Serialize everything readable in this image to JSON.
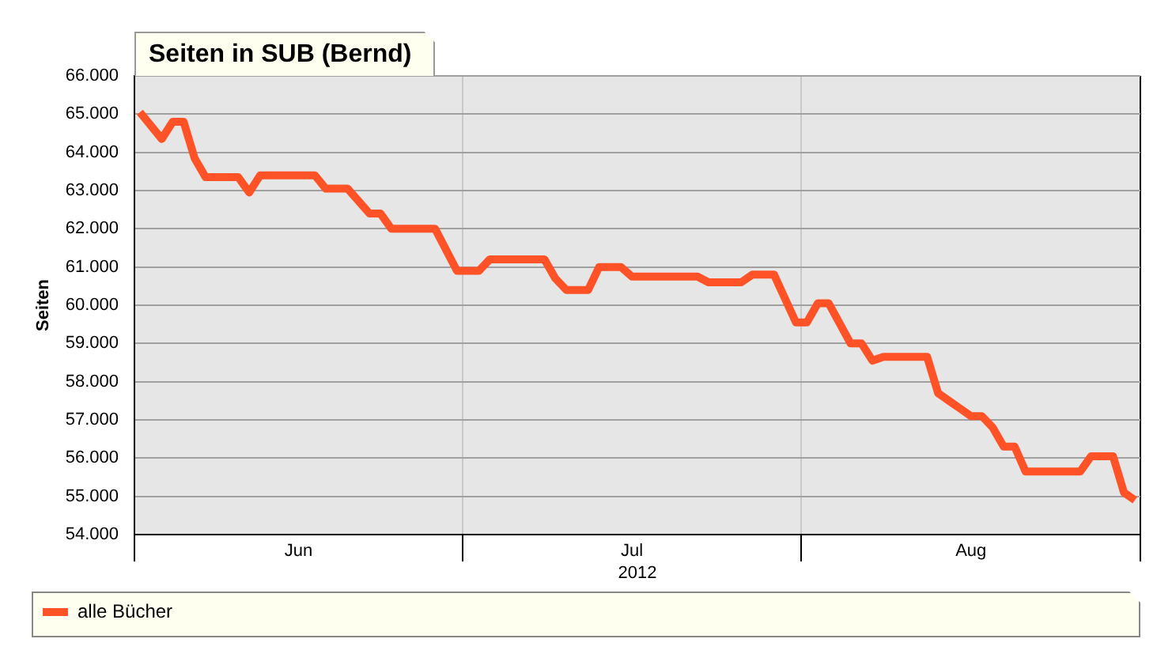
{
  "chart_data": {
    "type": "line",
    "title": "Seiten in SUB (Bernd)",
    "xlabel": "2012",
    "ylabel": "Seiten",
    "x": [
      "2012-06-01T12:00",
      "2012-06-03T12:00",
      "2012-06-04T12:00",
      "2012-06-05T12:00",
      "2012-06-06T12:00",
      "2012-06-07T12:00",
      "2012-06-10T12:00",
      "2012-06-11T12:00",
      "2012-06-12T12:00",
      "2012-06-17T12:00",
      "2012-06-18T12:00",
      "2012-06-20T12:00",
      "2012-06-22T12:00",
      "2012-06-23T12:00",
      "2012-06-24T12:00",
      "2012-06-28T12:00",
      "2012-06-30T12:00",
      "2012-07-02T12:00",
      "2012-07-03T12:00",
      "2012-07-08T12:00",
      "2012-07-09T12:00",
      "2012-07-10T12:00",
      "2012-07-12T12:00",
      "2012-07-13T12:00",
      "2012-07-15T12:00",
      "2012-07-16T12:00",
      "2012-07-22T12:00",
      "2012-07-23T12:00",
      "2012-07-26T12:00",
      "2012-07-27T12:00",
      "2012-07-29T12:00",
      "2012-07-31T12:00",
      "2012-08-01T12:00",
      "2012-08-02T12:00",
      "2012-08-03T12:00",
      "2012-08-05T12:00",
      "2012-08-06T12:00",
      "2012-08-07T12:00",
      "2012-08-08T12:00",
      "2012-08-12T12:00",
      "2012-08-13T12:00",
      "2012-08-14T12:00",
      "2012-08-15T12:00",
      "2012-08-16T12:00",
      "2012-08-17T12:00",
      "2012-08-18T12:00",
      "2012-08-19T12:00",
      "2012-08-20T12:00",
      "2012-08-21T12:00",
      "2012-08-26T12:00",
      "2012-08-27T12:00",
      "2012-08-29T12:00",
      "2012-08-30T12:00",
      "2012-08-31T12:00"
    ],
    "series": [
      {
        "name": "alle Bücher",
        "color": "#ff5327",
        "values": [
          65050,
          64350,
          64800,
          64800,
          63850,
          63350,
          63350,
          62950,
          63400,
          63400,
          63050,
          63050,
          62400,
          62400,
          62000,
          62000,
          60900,
          60900,
          61200,
          61200,
          60700,
          60400,
          60400,
          61000,
          61000,
          60750,
          60750,
          60600,
          60600,
          60800,
          60800,
          59550,
          59550,
          60050,
          60050,
          59000,
          59000,
          58550,
          58650,
          58650,
          57700,
          57500,
          57300,
          57100,
          57100,
          56800,
          56300,
          56300,
          55650,
          55650,
          56050,
          56050,
          55100,
          54900
        ]
      }
    ],
    "xlim": [
      "2012-06-01",
      "2012-09-01"
    ],
    "xticks": [
      {
        "value": "2012-06-01",
        "label": null
      },
      {
        "value": "2012-06-16",
        "label": "Jun"
      },
      {
        "value": "2012-07-01",
        "label": null
      },
      {
        "value": "2012-07-16T12:00",
        "label": "Jul"
      },
      {
        "value": "2012-08-01",
        "label": null
      },
      {
        "value": "2012-08-16T12:00",
        "label": "Aug"
      },
      {
        "value": "2012-09-01",
        "label": null
      }
    ],
    "ylim": [
      54000,
      66000
    ],
    "yticks": [
      {
        "value": 54000,
        "label": "54.000"
      },
      {
        "value": 55000,
        "label": "55.000"
      },
      {
        "value": 56000,
        "label": "56.000"
      },
      {
        "value": 57000,
        "label": "57.000"
      },
      {
        "value": 58000,
        "label": "58.000"
      },
      {
        "value": 59000,
        "label": "59.000"
      },
      {
        "value": 60000,
        "label": "60.000"
      },
      {
        "value": 61000,
        "label": "61.000"
      },
      {
        "value": 62000,
        "label": "62.000"
      },
      {
        "value": 63000,
        "label": "63.000"
      },
      {
        "value": 64000,
        "label": "64.000"
      },
      {
        "value": 65000,
        "label": "65.000"
      },
      {
        "value": 66000,
        "label": "66.000"
      }
    ],
    "grid": true,
    "legend": "bottom left"
  }
}
